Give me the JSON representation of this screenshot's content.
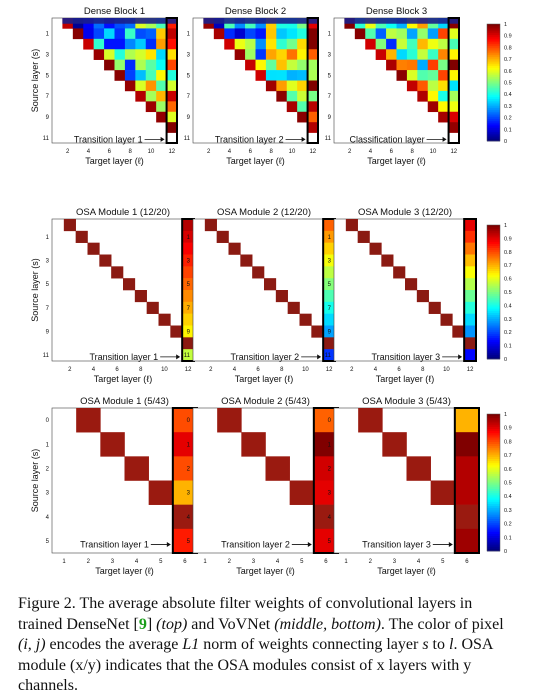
{
  "figure": {
    "rows": [
      {
        "panels": [
          {
            "title": "Dense Block 1",
            "bottom_label": "Transition layer 1"
          },
          {
            "title": "Dense Block 2",
            "bottom_label": "Transition layer 2"
          },
          {
            "title": "Dense Block 3",
            "bottom_label": "Classification layer"
          }
        ],
        "x_ticks": [
          "2",
          "4",
          "6",
          "8",
          "10",
          "12"
        ],
        "y_ticks": [
          "1",
          "3",
          "5",
          "7",
          "9",
          "11"
        ],
        "xlabel": "Target layer (ℓ)",
        "ylabel": "Source layer (s)",
        "colorbar_ticks": [
          "1",
          "0.9",
          "0.8",
          "0.7",
          "0.6",
          "0.5",
          "0.4",
          "0.3",
          "0.2",
          "0.1",
          "0"
        ]
      },
      {
        "panels": [
          {
            "title": "OSA Module 1 (12/20)",
            "bottom_label": "Transition layer 1"
          },
          {
            "title": "OSA Module 2 (12/20)",
            "bottom_label": "Transition layer 2"
          },
          {
            "title": "OSA Module 3 (12/20)",
            "bottom_label": "Transition layer 3"
          }
        ],
        "x_ticks": [
          "2",
          "4",
          "6",
          "8",
          "10",
          "12"
        ],
        "y_ticks": [
          "1",
          "3",
          "5",
          "7",
          "9",
          "11"
        ],
        "xlabel": "Target layer (ℓ)",
        "ylabel": "Source layer (s)",
        "colorbar_ticks": [
          "1",
          "0.9",
          "0.8",
          "0.7",
          "0.6",
          "0.5",
          "0.4",
          "0.3",
          "0.2",
          "0.1",
          "0"
        ]
      },
      {
        "panels": [
          {
            "title": "OSA Module 1 (5/43)",
            "bottom_label": "Transition layer 1"
          },
          {
            "title": "OSA Module 2 (5/43)",
            "bottom_label": "Transition layer 2"
          },
          {
            "title": "OSA Module 3 (5/43)",
            "bottom_label": "Transition layer 3"
          }
        ],
        "x_ticks": [
          "1",
          "2",
          "3",
          "4",
          "5",
          "6"
        ],
        "y_ticks": [
          "0",
          "1",
          "2",
          "3",
          "4",
          "5"
        ],
        "xlabel": "Target layer (ℓ)",
        "ylabel": "Source layer (s)",
        "colorbar_ticks": [
          "1",
          "0.9",
          "0.8",
          "0.7",
          "0.6",
          "0.5",
          "0.4",
          "0.3",
          "0.2",
          "0.1",
          "0"
        ]
      }
    ]
  },
  "caption": {
    "prefix": "Figure 2. The average absolute filter weights of convolutional layers in trained DenseNet [",
    "ref": "9",
    "mid1": "] ",
    "top": "(top)",
    "mid2": " and VoVNet ",
    "middle_bottom": "(middle, bottom)",
    "mid3": ". The color of pixel ",
    "pixel": "(i, j)",
    "mid4": " encodes the average ",
    "norm": "L1",
    "mid5": " norm of weights connecting layer ",
    "s": "s",
    "mid6": " to ",
    "l": "l",
    "suffix": ". OSA module (x/y) indicates that the OSA modules consist of x layers with y channels."
  }
}
